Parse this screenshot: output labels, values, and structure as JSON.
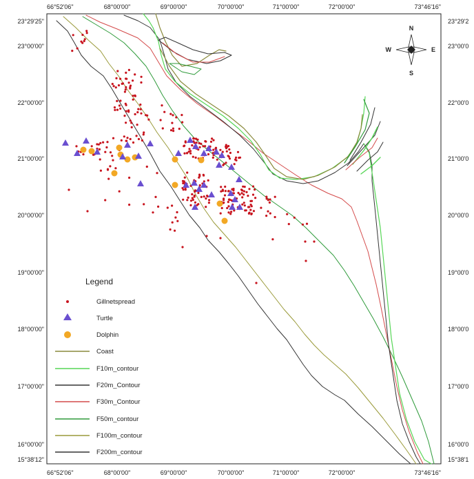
{
  "map": {
    "top_ticks": [
      "66°52'06\"",
      "68°00'00\"",
      "69°00'00\"",
      "70°00'00\"",
      "71°00'00\"",
      "72°00'00\"",
      "73°46'16\""
    ],
    "bottom_ticks": [
      "66°52'06\"",
      "68°00'00\"",
      "69°00'00\"",
      "70°00'00\"",
      "71°00'00\"",
      "72°00'00\"",
      "73°46'16\""
    ],
    "left_ticks": [
      "23°29'25\"",
      "23°00'00\"",
      "22°00'00\"",
      "21°00'00\"",
      "20°00'00\"",
      "19°00'00\"",
      "18°00'00\"",
      "17°00'00\"",
      "16°00'00\"",
      "15°38'12\""
    ],
    "right_ticks": [
      "23°29'2",
      "23°00'0",
      "22°00'0",
      "21°00'0",
      "20°00'0",
      "19°00'0",
      "18°00'0",
      "17°00'0",
      "16°00'0",
      "15°38'1"
    ]
  },
  "compass": {
    "n": "N",
    "s": "S",
    "e": "E",
    "w": "W"
  },
  "legend": {
    "title": "Legend",
    "items": [
      {
        "label": "Gillnetspread",
        "symbol": "dot",
        "color": "#c8141e"
      },
      {
        "label": "Turtle",
        "symbol": "triangle",
        "color": "#6a4fd0"
      },
      {
        "label": "Dolphin",
        "symbol": "circle",
        "color": "#f2a825"
      },
      {
        "label": "Coast",
        "symbol": "line",
        "color": "#8a8a3c"
      },
      {
        "label": "F10m_contour",
        "symbol": "line",
        "color": "#55d655"
      },
      {
        "label": "F20m_Contour",
        "symbol": "line",
        "color": "#333333"
      },
      {
        "label": "F30m_Contour",
        "symbol": "line",
        "color": "#d44a4a"
      },
      {
        "label": "F50m_contour",
        "symbol": "line",
        "color": "#2e9a3a"
      },
      {
        "label": "F100m_contour",
        "symbol": "line",
        "color": "#9a9a3a"
      },
      {
        "label": "F200m_contour",
        "symbol": "line",
        "color": "#333333"
      }
    ]
  },
  "colors": {
    "gillnet": "#c8141e",
    "turtle": "#6a4fd0",
    "dolphin": "#f2a825",
    "coast": "#8a8a3c",
    "f10": "#55d655",
    "f20": "#333333",
    "f30": "#d44a4a",
    "f50": "#2e9a3a",
    "f100": "#9a9a3a",
    "f200": "#333333"
  }
}
